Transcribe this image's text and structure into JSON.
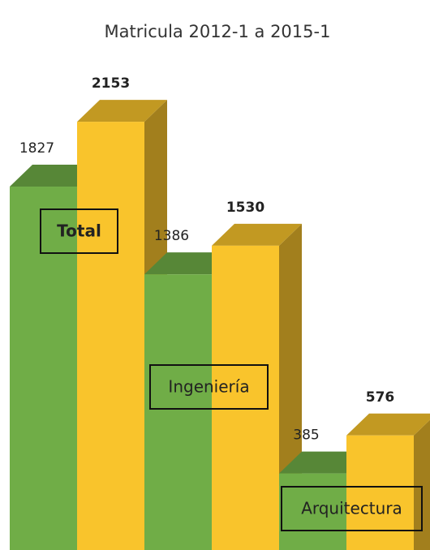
{
  "chart_data": {
    "type": "bar3d",
    "title": "Matricula 2012-1 a 2015-1",
    "categories": [
      "Total",
      "Ingeniería",
      "Arquitectura"
    ],
    "series": [
      {
        "color": "#70ad47",
        "values": [
          1827,
          1386,
          385
        ]
      },
      {
        "color": "#f9c42c",
        "values": [
          2153,
          1530,
          576
        ]
      }
    ]
  }
}
